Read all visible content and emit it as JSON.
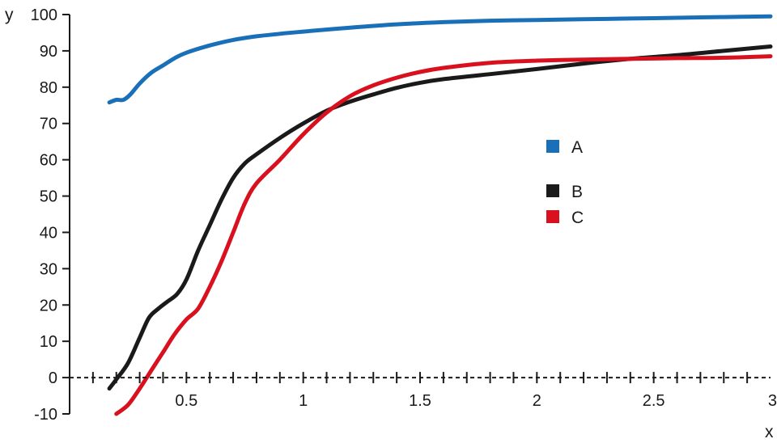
{
  "chart_data": {
    "type": "line",
    "title": "",
    "xlabel": "x",
    "ylabel": "y",
    "xlim": [
      0,
      3
    ],
    "ylim": [
      -10,
      100
    ],
    "x_ticks": [
      {
        "value": 0.5,
        "label": "0.5"
      },
      {
        "value": 1,
        "label": "1"
      },
      {
        "value": 1.5,
        "label": "1.5"
      },
      {
        "value": 2,
        "label": "2"
      },
      {
        "value": 2.5,
        "label": "2.5"
      },
      {
        "value": 3,
        "label": "3"
      }
    ],
    "y_ticks": [
      {
        "value": -10,
        "label": "-10"
      },
      {
        "value": 0,
        "label": "0"
      },
      {
        "value": 10,
        "label": "10"
      },
      {
        "value": 20,
        "label": "20"
      },
      {
        "value": 30,
        "label": "30"
      },
      {
        "value": 40,
        "label": "40"
      },
      {
        "value": 50,
        "label": "50"
      },
      {
        "value": 60,
        "label": "60"
      },
      {
        "value": 70,
        "label": "70"
      },
      {
        "value": 80,
        "label": "80"
      },
      {
        "value": 90,
        "label": "90"
      },
      {
        "value": 100,
        "label": "100"
      }
    ],
    "zero_line": "dashed",
    "grid": false,
    "legend_position": "center-right",
    "series": [
      {
        "name": "A",
        "color": "#1a70b8",
        "points": [
          [
            0.17,
            75.8
          ],
          [
            0.2,
            76.5
          ],
          [
            0.23,
            76.5
          ],
          [
            0.26,
            78
          ],
          [
            0.3,
            81
          ],
          [
            0.35,
            84
          ],
          [
            0.4,
            86
          ],
          [
            0.45,
            88
          ],
          [
            0.5,
            89.5
          ],
          [
            0.6,
            91.5
          ],
          [
            0.7,
            93
          ],
          [
            0.8,
            94
          ],
          [
            0.9,
            94.7
          ],
          [
            1.0,
            95.3
          ],
          [
            1.2,
            96.4
          ],
          [
            1.4,
            97.3
          ],
          [
            1.6,
            97.9
          ],
          [
            1.8,
            98.3
          ],
          [
            2.0,
            98.5
          ],
          [
            2.2,
            98.7
          ],
          [
            2.4,
            98.9
          ],
          [
            2.6,
            99.1
          ],
          [
            2.8,
            99.3
          ],
          [
            3.0,
            99.5
          ]
        ]
      },
      {
        "name": "B",
        "color": "#1a1a1a",
        "points": [
          [
            0.17,
            -3
          ],
          [
            0.2,
            -0.5
          ],
          [
            0.25,
            4
          ],
          [
            0.3,
            11
          ],
          [
            0.34,
            16.5
          ],
          [
            0.38,
            19
          ],
          [
            0.42,
            21
          ],
          [
            0.46,
            23
          ],
          [
            0.5,
            27
          ],
          [
            0.55,
            35
          ],
          [
            0.6,
            42
          ],
          [
            0.65,
            49
          ],
          [
            0.7,
            55
          ],
          [
            0.75,
            59
          ],
          [
            0.8,
            61.5
          ],
          [
            0.9,
            66
          ],
          [
            1.0,
            70
          ],
          [
            1.1,
            73.5
          ],
          [
            1.2,
            76
          ],
          [
            1.3,
            78
          ],
          [
            1.4,
            79.8
          ],
          [
            1.5,
            81.2
          ],
          [
            1.6,
            82.2
          ],
          [
            1.8,
            83.6
          ],
          [
            2.0,
            85
          ],
          [
            2.2,
            86.5
          ],
          [
            2.4,
            87.8
          ],
          [
            2.6,
            88.8
          ],
          [
            2.8,
            90
          ],
          [
            3.0,
            91.2
          ]
        ]
      },
      {
        "name": "C",
        "color": "#d9111f",
        "points": [
          [
            0.2,
            -10
          ],
          [
            0.25,
            -7.5
          ],
          [
            0.3,
            -3
          ],
          [
            0.35,
            2
          ],
          [
            0.4,
            7
          ],
          [
            0.45,
            12
          ],
          [
            0.5,
            16
          ],
          [
            0.55,
            19
          ],
          [
            0.6,
            25
          ],
          [
            0.65,
            32
          ],
          [
            0.7,
            40
          ],
          [
            0.75,
            48
          ],
          [
            0.8,
            53.5
          ],
          [
            0.9,
            60
          ],
          [
            1.0,
            67
          ],
          [
            1.1,
            73
          ],
          [
            1.2,
            77.5
          ],
          [
            1.3,
            80.5
          ],
          [
            1.4,
            82.6
          ],
          [
            1.5,
            84.2
          ],
          [
            1.6,
            85.3
          ],
          [
            1.8,
            86.7
          ],
          [
            2.0,
            87.3
          ],
          [
            2.2,
            87.6
          ],
          [
            2.4,
            87.8
          ],
          [
            2.6,
            88
          ],
          [
            2.8,
            88.1
          ],
          [
            3.0,
            88.5
          ]
        ]
      }
    ]
  }
}
